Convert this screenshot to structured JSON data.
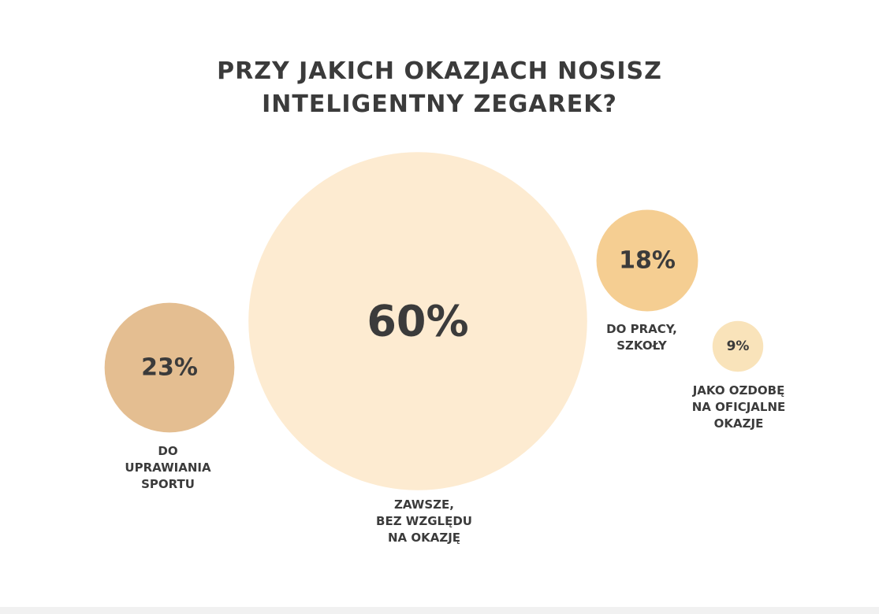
{
  "chart_data": {
    "type": "bubble",
    "title": "PRZY JAKICH OKAZJACH NOSISZ\nINTELIGENTNY ZEGAREK?",
    "categories": [
      "DO\nUPRAWIANIA\nSPORTU",
      "ZAWSZE,\nBEZ WZGLĘDU\nNA OKAZJĘ",
      "DO PRACY,\nSZKOŁY",
      "JAKO OZDOBĘ\nNA OFICJALNE\nOKAZJE"
    ],
    "values": [
      23,
      60,
      18,
      9
    ],
    "value_labels": [
      "23%",
      "60%",
      "18%",
      "9%"
    ],
    "colors": [
      "#e4be91",
      "#fdebd1",
      "#f5ce92",
      "#f9e3ba"
    ]
  }
}
